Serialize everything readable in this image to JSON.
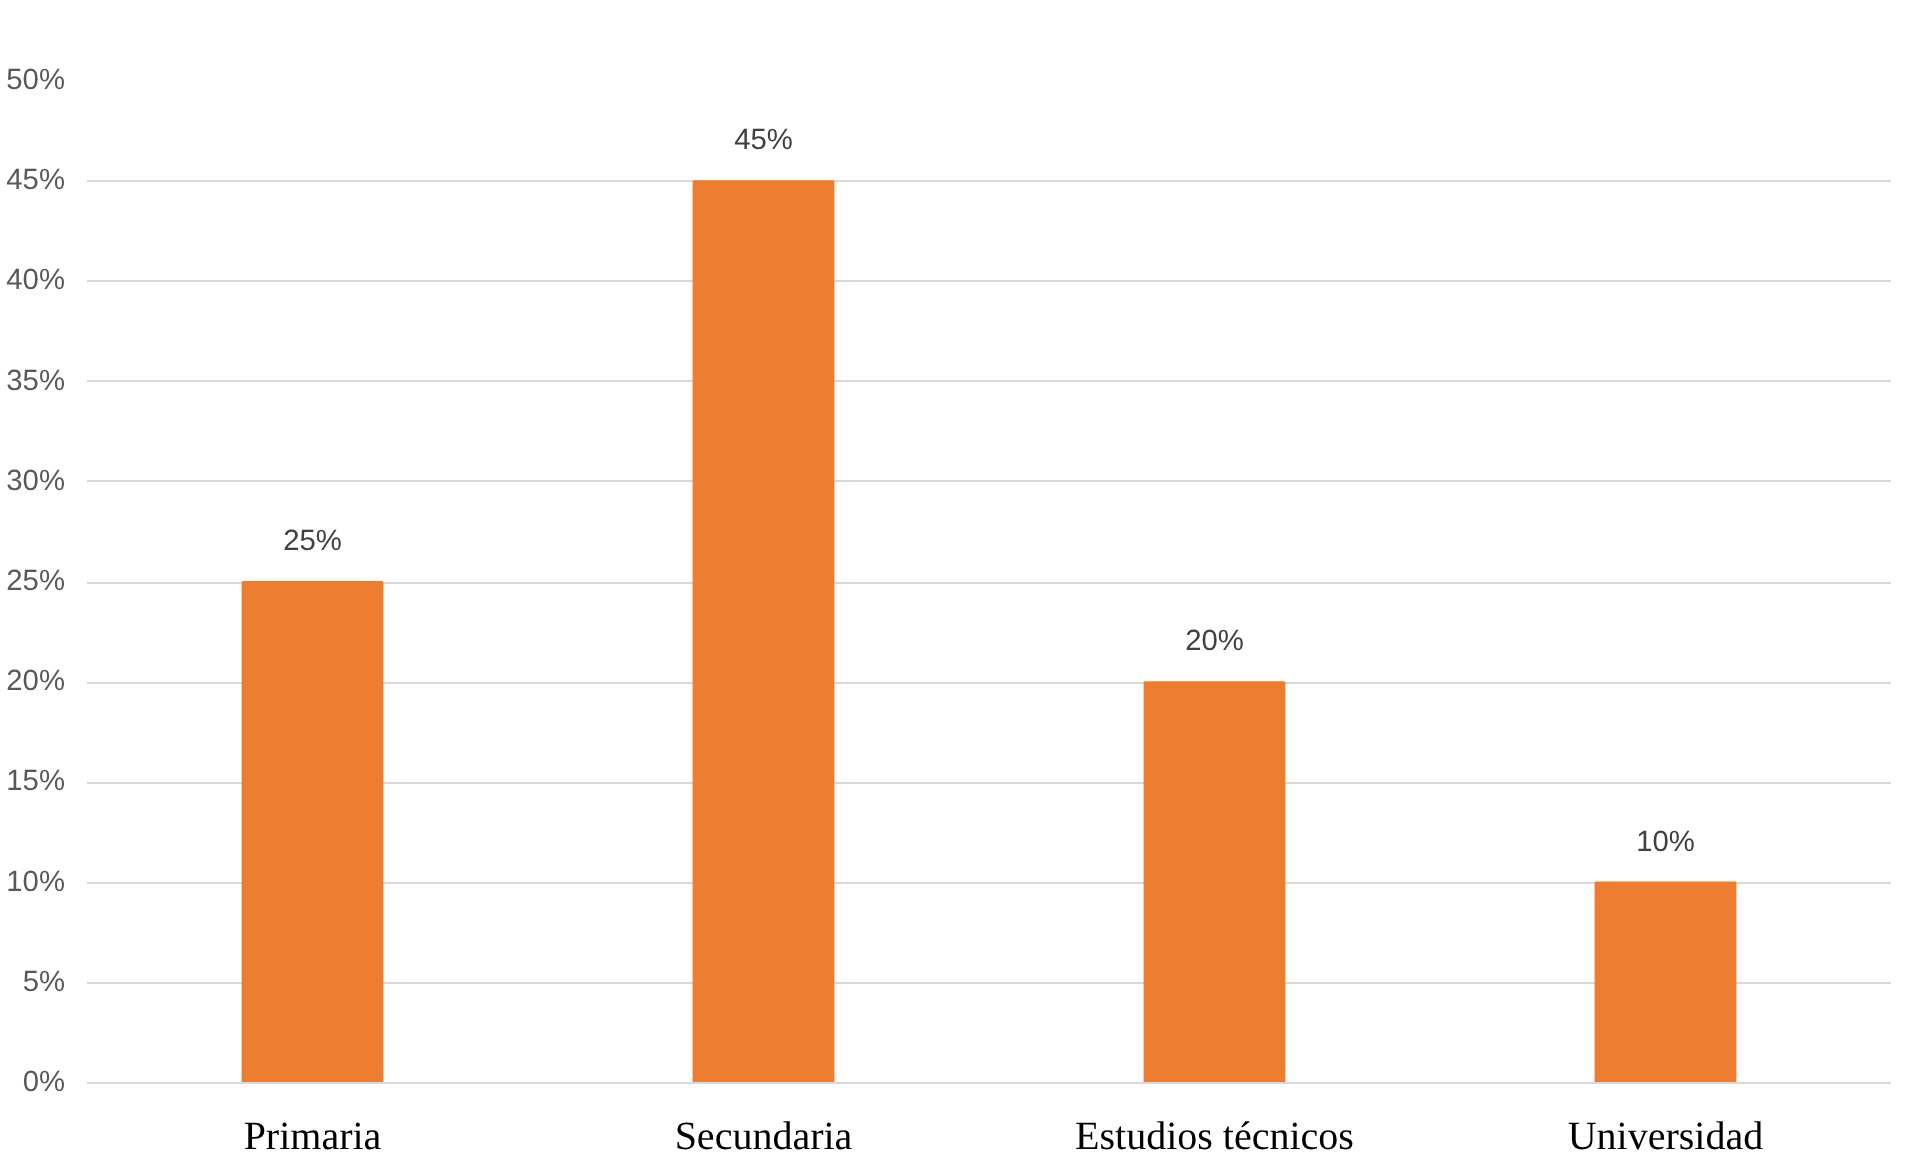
{
  "chart_data": {
    "type": "bar",
    "categories": [
      "Primaria",
      "Secundaria",
      "Estudios técnicos",
      "Universidad"
    ],
    "values": [
      25,
      45,
      20,
      10
    ],
    "color": "#ed7d31",
    "value_labels": [
      "25%",
      "45%",
      "20%",
      "10%"
    ],
    "ylim": [
      0,
      50
    ],
    "yticks": [
      {
        "value": 0,
        "label": "0%"
      },
      {
        "value": 5,
        "label": "5%"
      },
      {
        "value": 10,
        "label": "10%"
      },
      {
        "value": 15,
        "label": "15%"
      },
      {
        "value": 20,
        "label": "20%"
      },
      {
        "value": 25,
        "label": "25%"
      },
      {
        "value": 30,
        "label": "30%"
      },
      {
        "value": 35,
        "label": "35%"
      },
      {
        "value": 40,
        "label": "40%"
      },
      {
        "value": 45,
        "label": "45%"
      },
      {
        "value": 50,
        "label": "50%"
      }
    ],
    "grid": "y"
  }
}
